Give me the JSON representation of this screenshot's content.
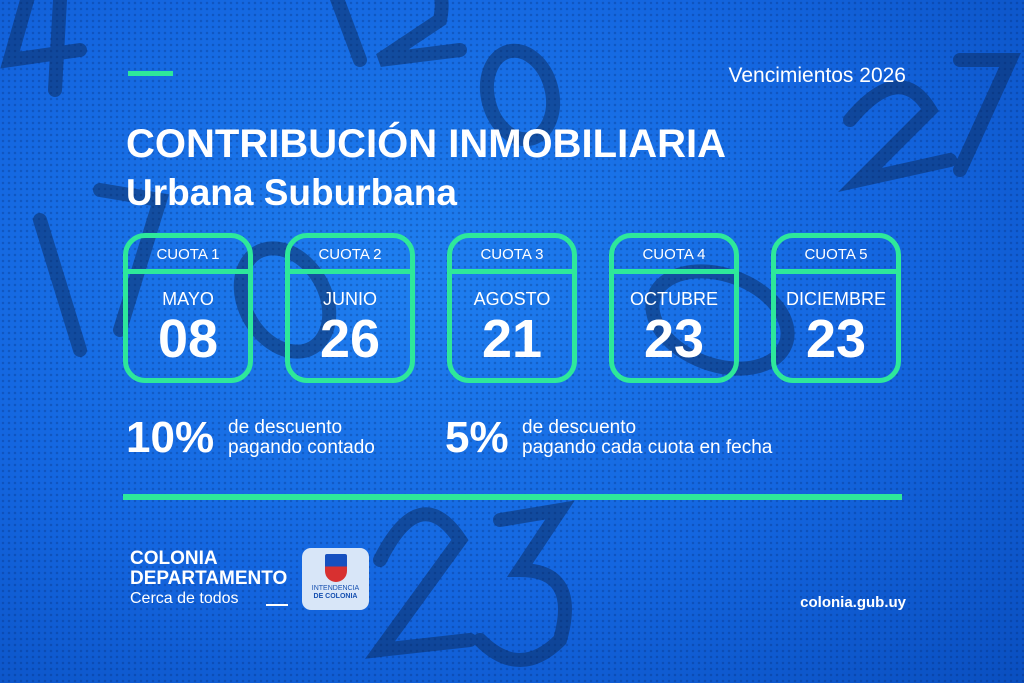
{
  "header": {
    "year_label": "Vencimientos  2026",
    "title": "CONTRIBUCIÓN INMOBILIARIA",
    "subtitle": "Urbana Suburbana"
  },
  "cuotas": [
    {
      "label": "CUOTA 1",
      "month": "MAYO",
      "day": "08"
    },
    {
      "label": "CUOTA 2",
      "month": "JUNIO",
      "day": "26"
    },
    {
      "label": "CUOTA 3",
      "month": "AGOSTO",
      "day": "21"
    },
    {
      "label": "CUOTA 4",
      "month": "OCTUBRE",
      "day": "23"
    },
    {
      "label": "CUOTA 5",
      "month": "DICIEMBRE",
      "day": "23"
    }
  ],
  "discounts": [
    {
      "pct": "10%",
      "line1": "de descuento",
      "line2": "pagando contado"
    },
    {
      "pct": "5%",
      "line1": "de descuento",
      "line2": "pagando cada cuota en fecha"
    }
  ],
  "footer": {
    "brand1": "COLONIA",
    "brand2": "DEPARTAMENTO",
    "tagline": "Cerca de todos",
    "logo_text1": "INTENDENCIA",
    "logo_text2": "DE COLONIA",
    "website": "colonia.gub.uy"
  },
  "colors": {
    "accent": "#2ee89a",
    "background": "#1670e8"
  }
}
